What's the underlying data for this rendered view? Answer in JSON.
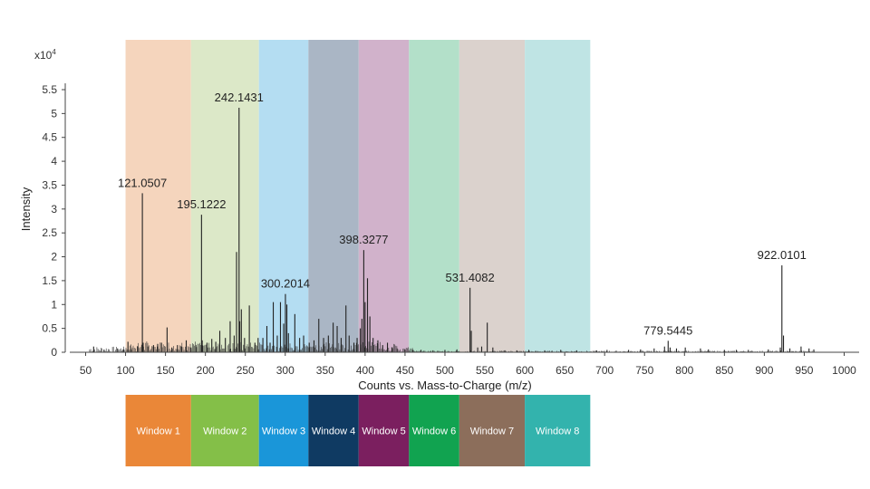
{
  "chart_data": {
    "type": "line",
    "subtype": "mass-spectrum-stick",
    "title": "",
    "xlabel": "Counts vs. Mass-to-Charge (m/z)",
    "ylabel": "Intensity",
    "y_multiplier_label": "x10",
    "y_multiplier_exponent": "4",
    "xlim": [
      25,
      1010
    ],
    "ylim": [
      0,
      5.9
    ],
    "x_ticks": [
      50,
      100,
      150,
      200,
      250,
      300,
      350,
      400,
      450,
      500,
      550,
      600,
      650,
      700,
      750,
      800,
      850,
      900,
      950,
      1000
    ],
    "y_ticks": [
      0,
      0.5,
      1,
      1.5,
      2,
      2.5,
      3,
      3.5,
      4,
      4.5,
      5,
      5.5
    ],
    "y_tick_labels": [
      "0",
      "0.5",
      "1",
      "1.5",
      "2",
      "2.5",
      "3",
      "3.5",
      "4",
      "4.5",
      "5",
      "5.5"
    ],
    "windows": [
      {
        "name": "Window 1",
        "start": 100,
        "end": 182,
        "band_color": "#f5d5bd",
        "label_color": "#ea8738"
      },
      {
        "name": "Window 2",
        "start": 182,
        "end": 267,
        "band_color": "#dce8c8",
        "label_color": "#84bf48"
      },
      {
        "name": "Window 3",
        "start": 267,
        "end": 329,
        "band_color": "#b4ddf2",
        "label_color": "#1a96d9"
      },
      {
        "name": "Window 4",
        "start": 329,
        "end": 392,
        "band_color": "#aab6c5",
        "label_color": "#0f3a62"
      },
      {
        "name": "Window 5",
        "start": 392,
        "end": 455,
        "band_color": "#d1b2cb",
        "label_color": "#7b1f5f"
      },
      {
        "name": "Window 6",
        "start": 455,
        "end": 518,
        "band_color": "#b3e0c9",
        "label_color": "#11a350"
      },
      {
        "name": "Window 7",
        "start": 518,
        "end": 600,
        "band_color": "#dbd2cd",
        "label_color": "#8c6e5b"
      },
      {
        "name": "Window 8",
        "start": 600,
        "end": 682,
        "band_color": "#bfe4e4",
        "label_color": "#33b3ad"
      }
    ],
    "peaks": [
      {
        "x": 60,
        "y": 0.12
      },
      {
        "x": 73,
        "y": 0.05
      },
      {
        "x": 90,
        "y": 0.08
      },
      {
        "x": 97,
        "y": 0.06
      },
      {
        "x": 103,
        "y": 0.22
      },
      {
        "x": 107,
        "y": 0.06
      },
      {
        "x": 115,
        "y": 0.12
      },
      {
        "x": 121.0507,
        "y": 3.33
      },
      {
        "x": 122,
        "y": 0.2
      },
      {
        "x": 128,
        "y": 0.12
      },
      {
        "x": 135,
        "y": 0.15
      },
      {
        "x": 140,
        "y": 0.12
      },
      {
        "x": 145,
        "y": 0.2
      },
      {
        "x": 152,
        "y": 0.52
      },
      {
        "x": 158,
        "y": 0.1
      },
      {
        "x": 165,
        "y": 0.15
      },
      {
        "x": 170,
        "y": 0.12
      },
      {
        "x": 176,
        "y": 0.25
      },
      {
        "x": 182,
        "y": 0.1
      },
      {
        "x": 188,
        "y": 0.15
      },
      {
        "x": 195.1222,
        "y": 2.88
      },
      {
        "x": 196,
        "y": 0.25
      },
      {
        "x": 202,
        "y": 0.2
      },
      {
        "x": 208,
        "y": 0.28
      },
      {
        "x": 213,
        "y": 0.22
      },
      {
        "x": 218,
        "y": 0.45
      },
      {
        "x": 225,
        "y": 0.3
      },
      {
        "x": 231,
        "y": 0.65
      },
      {
        "x": 236,
        "y": 0.35
      },
      {
        "x": 239,
        "y": 2.1
      },
      {
        "x": 242.1431,
        "y": 5.12
      },
      {
        "x": 243,
        "y": 0.65
      },
      {
        "x": 245,
        "y": 0.9
      },
      {
        "x": 249,
        "y": 0.3
      },
      {
        "x": 255,
        "y": 0.98
      },
      {
        "x": 262,
        "y": 0.2
      },
      {
        "x": 266,
        "y": 0.3
      },
      {
        "x": 272,
        "y": 0.3
      },
      {
        "x": 277,
        "y": 0.55
      },
      {
        "x": 281,
        "y": 0.2
      },
      {
        "x": 285,
        "y": 1.05
      },
      {
        "x": 290,
        "y": 0.35
      },
      {
        "x": 294,
        "y": 1.05
      },
      {
        "x": 298,
        "y": 0.6
      },
      {
        "x": 300.2014,
        "y": 1.22
      },
      {
        "x": 302,
        "y": 1.0
      },
      {
        "x": 304,
        "y": 0.4
      },
      {
        "x": 312,
        "y": 0.8
      },
      {
        "x": 318,
        "y": 0.3
      },
      {
        "x": 323,
        "y": 0.35
      },
      {
        "x": 330,
        "y": 0.2
      },
      {
        "x": 336,
        "y": 0.25
      },
      {
        "x": 342,
        "y": 0.7
      },
      {
        "x": 348,
        "y": 0.3
      },
      {
        "x": 354,
        "y": 0.35
      },
      {
        "x": 360,
        "y": 0.62
      },
      {
        "x": 365,
        "y": 0.55
      },
      {
        "x": 370,
        "y": 0.3
      },
      {
        "x": 376,
        "y": 0.98
      },
      {
        "x": 380,
        "y": 0.35
      },
      {
        "x": 386,
        "y": 0.2
      },
      {
        "x": 390,
        "y": 0.3
      },
      {
        "x": 394,
        "y": 0.5
      },
      {
        "x": 396,
        "y": 0.7
      },
      {
        "x": 398.3277,
        "y": 2.14
      },
      {
        "x": 400,
        "y": 1.05
      },
      {
        "x": 403,
        "y": 1.55
      },
      {
        "x": 406,
        "y": 0.75
      },
      {
        "x": 410,
        "y": 0.3
      },
      {
        "x": 416,
        "y": 0.25
      },
      {
        "x": 422,
        "y": 0.15
      },
      {
        "x": 428,
        "y": 0.2
      },
      {
        "x": 434,
        "y": 0.1
      },
      {
        "x": 440,
        "y": 0.08
      },
      {
        "x": 450,
        "y": 0.06
      },
      {
        "x": 460,
        "y": 0.05
      },
      {
        "x": 470,
        "y": 0.05
      },
      {
        "x": 485,
        "y": 0.04
      },
      {
        "x": 500,
        "y": 0.05
      },
      {
        "x": 515,
        "y": 0.06
      },
      {
        "x": 531.4082,
        "y": 1.35
      },
      {
        "x": 533,
        "y": 0.45
      },
      {
        "x": 541,
        "y": 0.1
      },
      {
        "x": 546,
        "y": 0.12
      },
      {
        "x": 553,
        "y": 0.62
      },
      {
        "x": 560,
        "y": 0.1
      },
      {
        "x": 575,
        "y": 0.04
      },
      {
        "x": 590,
        "y": 0.04
      },
      {
        "x": 605,
        "y": 0.05
      },
      {
        "x": 625,
        "y": 0.04
      },
      {
        "x": 645,
        "y": 0.05
      },
      {
        "x": 665,
        "y": 0.04
      },
      {
        "x": 690,
        "y": 0.04
      },
      {
        "x": 703,
        "y": 0.05
      },
      {
        "x": 730,
        "y": 0.05
      },
      {
        "x": 745,
        "y": 0.06
      },
      {
        "x": 762,
        "y": 0.08
      },
      {
        "x": 775,
        "y": 0.12
      },
      {
        "x": 779.5445,
        "y": 0.24
      },
      {
        "x": 782,
        "y": 0.1
      },
      {
        "x": 790,
        "y": 0.08
      },
      {
        "x": 801,
        "y": 0.1
      },
      {
        "x": 820,
        "y": 0.08
      },
      {
        "x": 830,
        "y": 0.06
      },
      {
        "x": 850,
        "y": 0.05
      },
      {
        "x": 865,
        "y": 0.05
      },
      {
        "x": 880,
        "y": 0.05
      },
      {
        "x": 905,
        "y": 0.06
      },
      {
        "x": 920,
        "y": 0.1
      },
      {
        "x": 922.0101,
        "y": 1.82
      },
      {
        "x": 924,
        "y": 0.35
      },
      {
        "x": 932,
        "y": 0.08
      },
      {
        "x": 946,
        "y": 0.12
      },
      {
        "x": 956,
        "y": 0.08
      },
      {
        "x": 962,
        "y": 0.06
      }
    ],
    "annotations": [
      {
        "text": "121.0507",
        "x": 121.0507,
        "y": 3.33
      },
      {
        "text": "195.1222",
        "x": 195.1222,
        "y": 2.88
      },
      {
        "text": "242.1431",
        "x": 242.1431,
        "y": 5.12
      },
      {
        "text": "300.2014",
        "x": 300.2014,
        "y": 1.22
      },
      {
        "text": "398.3277",
        "x": 398.3277,
        "y": 2.14
      },
      {
        "text": "531.4082",
        "x": 531.4082,
        "y": 1.35
      },
      {
        "text": "779.5445",
        "x": 779.5445,
        "y": 0.24
      },
      {
        "text": "922.0101",
        "x": 922.0101,
        "y": 1.82
      }
    ]
  }
}
